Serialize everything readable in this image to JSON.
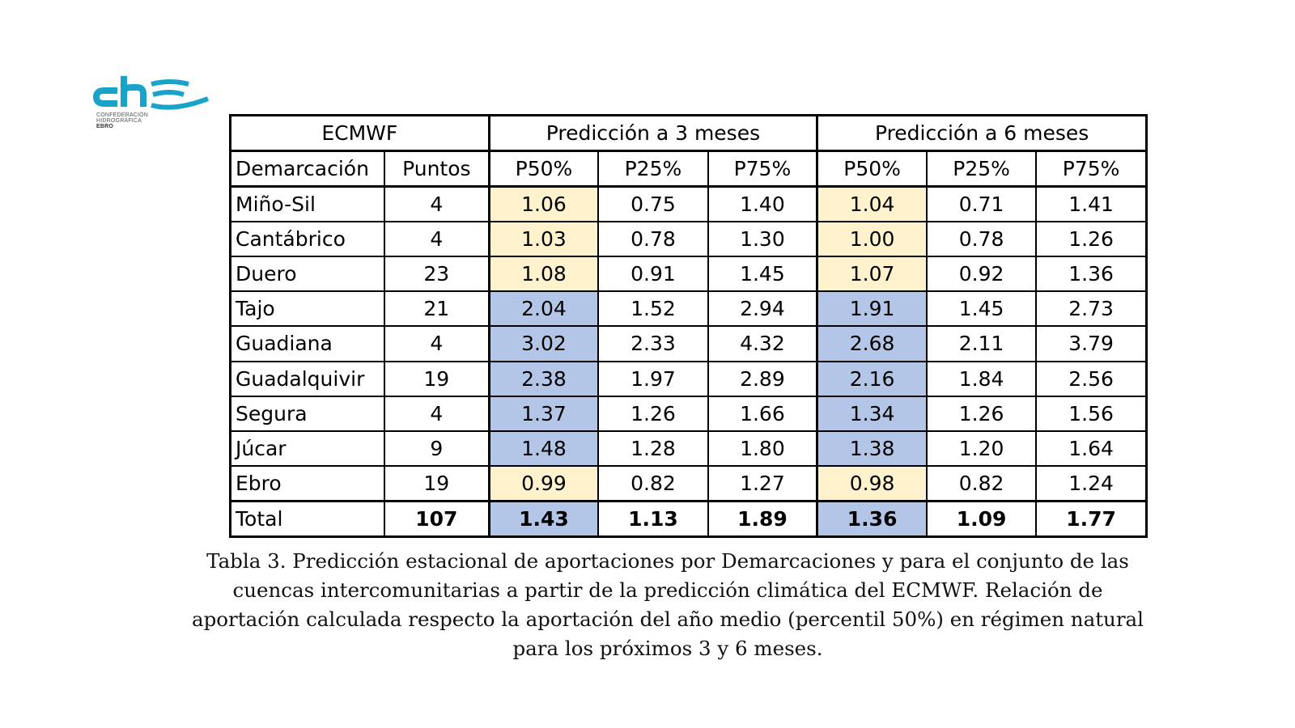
{
  "logo": {
    "wordmark": "chE",
    "line1": "CONFEDERACIÓN",
    "line2": "HIDROGRÁFICA",
    "line3": "EBRO",
    "color": "#1aa3c8"
  },
  "table": {
    "group_headers": [
      "ECMWF",
      "Predicción a 3 meses",
      "Predicción a 6 meses"
    ],
    "column_headers": [
      "Demarcación",
      "Puntos",
      "P50%",
      "P25%",
      "P75%",
      "P50%",
      "P25%",
      "P75%"
    ],
    "rows": [
      {
        "name": "Miño-Sil",
        "puntos": "4",
        "m3": [
          "1.06",
          "0.75",
          "1.40"
        ],
        "m6": [
          "1.04",
          "0.71",
          "1.41"
        ],
        "highlight": "beige"
      },
      {
        "name": "Cantábrico",
        "puntos": "4",
        "m3": [
          "1.03",
          "0.78",
          "1.30"
        ],
        "m6": [
          "1.00",
          "0.78",
          "1.26"
        ],
        "highlight": "beige"
      },
      {
        "name": "Duero",
        "puntos": "23",
        "m3": [
          "1.08",
          "0.91",
          "1.45"
        ],
        "m6": [
          "1.07",
          "0.92",
          "1.36"
        ],
        "highlight": "beige"
      },
      {
        "name": "Tajo",
        "puntos": "21",
        "m3": [
          "2.04",
          "1.52",
          "2.94"
        ],
        "m6": [
          "1.91",
          "1.45",
          "2.73"
        ],
        "highlight": "blue"
      },
      {
        "name": "Guadiana",
        "puntos": "4",
        "m3": [
          "3.02",
          "2.33",
          "4.32"
        ],
        "m6": [
          "2.68",
          "2.11",
          "3.79"
        ],
        "highlight": "blue"
      },
      {
        "name": "Guadalquivir",
        "puntos": "19",
        "m3": [
          "2.38",
          "1.97",
          "2.89"
        ],
        "m6": [
          "2.16",
          "1.84",
          "2.56"
        ],
        "highlight": "blue"
      },
      {
        "name": "Segura",
        "puntos": "4",
        "m3": [
          "1.37",
          "1.26",
          "1.66"
        ],
        "m6": [
          "1.34",
          "1.26",
          "1.56"
        ],
        "highlight": "blue"
      },
      {
        "name": "Júcar",
        "puntos": "9",
        "m3": [
          "1.48",
          "1.28",
          "1.80"
        ],
        "m6": [
          "1.38",
          "1.20",
          "1.64"
        ],
        "highlight": "blue"
      },
      {
        "name": "Ebro",
        "puntos": "19",
        "m3": [
          "0.99",
          "0.82",
          "1.27"
        ],
        "m6": [
          "0.98",
          "0.82",
          "1.24"
        ],
        "highlight": "beige"
      }
    ],
    "total": {
      "name": "Total",
      "puntos": "107",
      "m3": [
        "1.43",
        "1.13",
        "1.89"
      ],
      "m6": [
        "1.36",
        "1.09",
        "1.77"
      ],
      "highlight": "blue"
    },
    "colors": {
      "beige": "#fff2cc",
      "blue": "#b4c6e7"
    }
  },
  "caption": {
    "line1": "Tabla 3. Predicción estacional de aportaciones por Demarcaciones y para el conjunto de las",
    "line2": "cuencas intercomunitarias a partir de la predicción climática del ECMWF. Relación de",
    "line3": "aportación calculada respecto la aportación del año medio (percentil 50%) en régimen natural",
    "line4": "para los próximos 3 y 6 meses."
  }
}
